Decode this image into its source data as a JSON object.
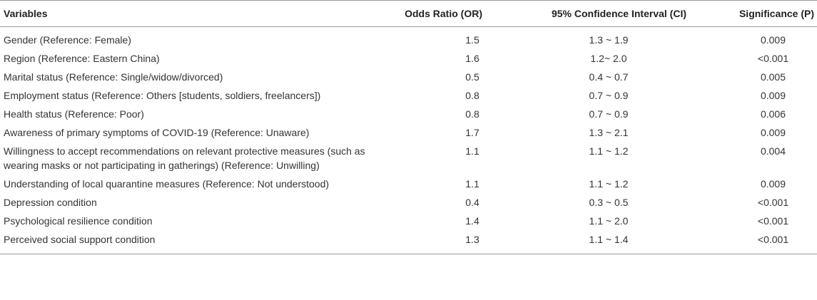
{
  "table": {
    "headers": {
      "variables": "Variables",
      "odds_ratio": "Odds Ratio (OR)",
      "ci": "95% Confidence Interval (CI)",
      "p": "Significance (P)"
    },
    "rows": [
      {
        "variable": "Gender (Reference: Female)",
        "or": "1.5",
        "ci": "1.3 ~ 1.9",
        "p": "0.009"
      },
      {
        "variable": "Region (Reference: Eastern China)",
        "or": "1.6",
        "ci": "1.2~ 2.0",
        "p": "<0.001"
      },
      {
        "variable": "Marital status (Reference: Single/widow/divorced)",
        "or": "0.5",
        "ci": "0.4 ~ 0.7",
        "p": "0.005"
      },
      {
        "variable": "Employment status (Reference: Others [students, soldiers, freelancers])",
        "or": "0.8",
        "ci": "0.7 ~ 0.9",
        "p": "0.009"
      },
      {
        "variable": "Health status (Reference: Poor)",
        "or": "0.8",
        "ci": "0.7 ~ 0.9",
        "p": "0.006"
      },
      {
        "variable": "Awareness of primary symptoms of COVID-19 (Reference: Unaware)",
        "or": "1.7",
        "ci": "1.3 ~ 2.1",
        "p": "0.009"
      },
      {
        "variable": "Willingness to accept recommendations on relevant protective measures (such as wearing masks or not participating in gatherings) (Reference: Unwilling)",
        "or": "1.1",
        "ci": "1.1 ~ 1.2",
        "p": "0.004"
      },
      {
        "variable": "Understanding of local quarantine measures (Reference: Not understood)",
        "or": "1.1",
        "ci": "1.1 ~ 1.2",
        "p": "0.009"
      },
      {
        "variable": "Depression condition",
        "or": "0.4",
        "ci": "0.3 ~ 0.5",
        "p": "<0.001"
      },
      {
        "variable": "Psychological resilience condition",
        "or": "1.4",
        "ci": "1.1 ~ 2.0",
        "p": "<0.001"
      },
      {
        "variable": "Perceived social support condition",
        "or": "1.3",
        "ci": "1.1 ~ 1.4",
        "p": "<0.001"
      }
    ]
  }
}
